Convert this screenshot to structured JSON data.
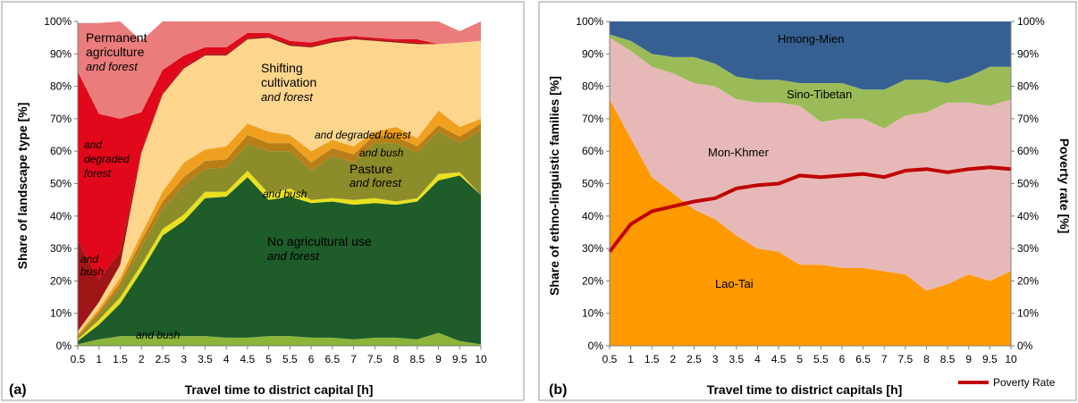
{
  "chart_data": [
    {
      "panel_label": "(a)",
      "type": "area",
      "stacked": true,
      "xlabel": "Travel time to district capital [h]",
      "ylabel": "Share of landscape type [%]",
      "x": [
        0.5,
        1,
        1.5,
        2,
        2.5,
        3,
        3.5,
        4,
        4.5,
        5,
        5.5,
        6,
        6.5,
        7,
        7.5,
        8,
        8.5,
        9,
        9.5,
        10
      ],
      "x_tick_labels": [
        "0.5",
        "1",
        "1.5",
        "2",
        "2.5",
        "3",
        "3.5",
        "4",
        "4.5",
        "5",
        "5.5",
        "6",
        "6.5",
        "7",
        "7.5",
        "8",
        "8.5",
        "9",
        "9.5",
        "10"
      ],
      "ylim": [
        0,
        100
      ],
      "y_tick_labels": [
        "0%",
        "10%",
        "20%",
        "30%",
        "40%",
        "50%",
        "60%",
        "70%",
        "80%",
        "90%",
        "100%"
      ],
      "grid": false,
      "series": [
        {
          "key": "no_ag_bush",
          "color": "#8cb53a",
          "values": [
            0.5,
            2,
            3,
            3,
            3,
            3,
            3,
            2.5,
            2.5,
            3,
            3,
            2.5,
            2.5,
            2,
            2.5,
            2.5,
            2,
            4,
            1.5,
            0.5
          ]
        },
        {
          "key": "no_ag_forest",
          "color": "#1e5c2a",
          "values": [
            1,
            4.5,
            10,
            20,
            31,
            35.5,
            42.5,
            43.5,
            49.5,
            42,
            43,
            41.5,
            42,
            41.5,
            41.5,
            41,
            42.5,
            47,
            51,
            46
          ]
        },
        {
          "key": "shifting_pasture_bush",
          "color": "#e8e020",
          "values": [
            0.5,
            1.5,
            2,
            2,
            2,
            2,
            2,
            1.5,
            2,
            2,
            2.5,
            1,
            1,
            1.5,
            1.5,
            1,
            1,
            2,
            1,
            0
          ]
        },
        {
          "key": "pasture_forest",
          "color": "#8c8c2a",
          "values": [
            0.5,
            1.5,
            3,
            5.5,
            6,
            9,
            7,
            7.5,
            8,
            13,
            11.5,
            9,
            13,
            11.5,
            17,
            18,
            14,
            13,
            9,
            20
          ]
        },
        {
          "key": "pasture_bush",
          "color": "#b87f18",
          "values": [
            0.5,
            1,
            1.5,
            2,
            2.5,
            2.5,
            2.5,
            2.5,
            3,
            2.5,
            2.5,
            2.5,
            2.5,
            2.5,
            2.5,
            2,
            2,
            2,
            2,
            2
          ]
        },
        {
          "key": "pasture_degraded_forest",
          "color": "#f0a020",
          "values": [
            0.5,
            1,
            1.5,
            2,
            3,
            4.5,
            3.5,
            4,
            3.5,
            3.5,
            2.5,
            3.5,
            2.5,
            2.5,
            1,
            3,
            2.5,
            4.5,
            3,
            1.5
          ]
        },
        {
          "key": "shifting_forest",
          "color": "#fdd58c",
          "values": [
            1,
            2,
            4,
            25,
            30,
            29,
            29,
            28,
            26,
            29,
            27.5,
            32,
            30,
            33,
            28,
            26,
            29,
            20.5,
            26,
            24
          ]
        },
        {
          "key": "perm_bush",
          "color": "#a01515",
          "values": [
            28,
            7,
            4,
            0.5,
            0.5,
            0.5,
            0.5,
            0.5,
            0.5,
            0.5,
            0.5,
            0.5,
            0.5,
            0.5,
            0.5,
            0.5,
            0.5,
            0,
            0,
            0
          ]
        },
        {
          "key": "perm_degraded_forest",
          "color": "#e0081a",
          "values": [
            52,
            51,
            41,
            12,
            7,
            3.5,
            2,
            2,
            1.5,
            1,
            1,
            1,
            1,
            0.5,
            0.5,
            0.5,
            1,
            0,
            0,
            0
          ]
        },
        {
          "key": "perm_forest",
          "color": "#eb7c7c",
          "values": [
            15,
            28,
            30,
            22,
            15,
            10.5,
            8,
            9,
            3.5,
            3.5,
            6,
            6.5,
            5,
            4.5,
            5,
            5.5,
            5.5,
            7,
            3.5,
            6
          ]
        }
      ],
      "annotations": {
        "perm_title": [
          "Permanent",
          "agriculture"
        ],
        "perm_sub": "and forest",
        "perm_degraded": [
          "and",
          "degraded",
          "forest"
        ],
        "perm_bush": [
          "and",
          "bush"
        ],
        "shifting_title": [
          "Shifting",
          "cultivation"
        ],
        "shifting_sub": "and forest",
        "pasture_degraded": "and degraded forest",
        "pasture_bush": "and bush",
        "pasture_title": "Pasture",
        "pasture_sub": "and forest",
        "shifting_bush": "and bush",
        "noag_title": "No agricultural use",
        "noag_sub": "and forest",
        "noag_bush": "and bush"
      }
    },
    {
      "panel_label": "(b)",
      "type": "area",
      "stacked": true,
      "xlabel": "Travel time to district capitals [h]",
      "ylabel": "Share of ethno-linguistic families [%]",
      "y2label": "Poverty rate [%]",
      "x": [
        0.5,
        1,
        1.5,
        2,
        2.5,
        3,
        3.5,
        4,
        4.5,
        5,
        5.5,
        6,
        6.5,
        7,
        7.5,
        8,
        8.5,
        9,
        9.5,
        10
      ],
      "x_tick_labels": [
        "0.5",
        "1",
        "1.5",
        "2",
        "2.5",
        "3",
        "3.5",
        "4",
        "4.5",
        "5",
        "5.5",
        "6",
        "6.5",
        "7",
        "7.5",
        "8",
        "8.5",
        "9",
        "9.5",
        "10"
      ],
      "ylim": [
        0,
        100
      ],
      "y2lim": [
        0,
        100
      ],
      "y_tick_labels": [
        "0%",
        "10%",
        "20%",
        "30%",
        "40%",
        "50%",
        "60%",
        "70%",
        "80%",
        "90%",
        "100%"
      ],
      "grid": false,
      "series": [
        {
          "name": "Lao-Tai",
          "color": "#ff9900",
          "values": [
            76,
            64,
            52,
            47,
            42,
            39,
            34,
            30,
            29,
            25,
            25,
            24,
            24,
            23,
            22,
            17,
            19,
            22,
            20,
            23
          ]
        },
        {
          "name": "Mon-Khmer",
          "color": "#e6b9b8",
          "values": [
            19,
            27,
            34,
            37,
            39,
            41,
            42,
            45,
            46,
            49,
            44,
            46,
            46,
            44,
            49,
            55,
            56,
            53,
            54,
            53
          ]
        },
        {
          "name": "Sino-Tibetan",
          "color": "#9bbb59",
          "values": [
            1,
            3,
            4,
            5,
            8,
            7,
            7,
            7,
            7,
            7,
            12,
            11,
            9,
            12,
            11,
            10,
            6,
            8,
            12,
            10
          ]
        },
        {
          "name": "Hmong-Mien",
          "color": "#366092",
          "values": [
            4,
            6,
            10,
            11,
            11,
            13,
            17,
            18,
            18,
            19,
            19,
            19,
            21,
            21,
            18,
            18,
            19,
            17,
            14,
            14
          ]
        }
      ],
      "line_series": {
        "name": "Poverty Rate",
        "color": "#c00000",
        "values": [
          29,
          37.5,
          41.5,
          43,
          44.5,
          45.5,
          48.5,
          49.5,
          50,
          52.5,
          52,
          52.5,
          53,
          52,
          54,
          54.5,
          53.5,
          54.5,
          55,
          54.5
        ]
      },
      "legend_position": "bottom-right"
    }
  ]
}
